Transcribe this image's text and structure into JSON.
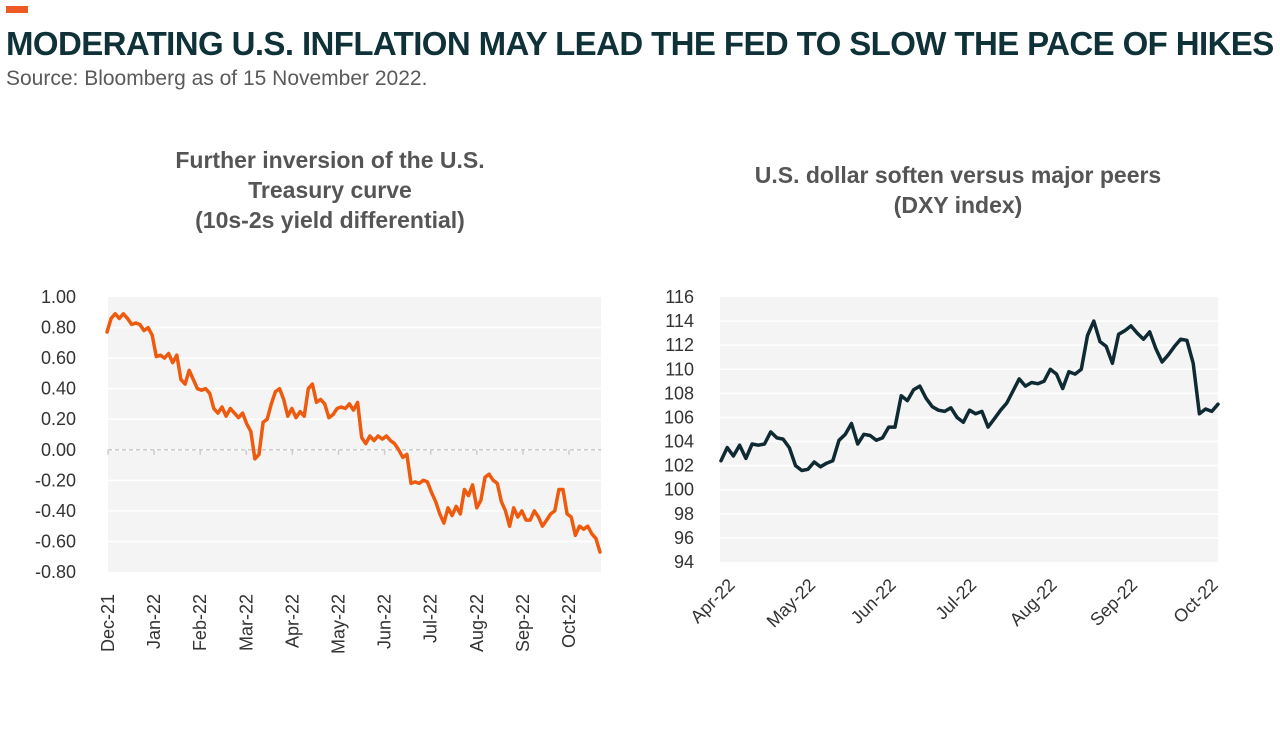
{
  "header": {
    "title": "MODERATING U.S. INFLATION MAY LEAD THE FED TO SLOW THE PACE OF HIKES",
    "source": "Source: Bloomberg as of 15 November 2022.",
    "accent_color": "#ee5a24",
    "title_color": "#0f3138"
  },
  "chart_data": [
    {
      "type": "line",
      "title_lines": [
        "Further inversion of the U.S.",
        "Treasury curve",
        "(10s-2s yield differential)"
      ],
      "xlabel": "",
      "ylabel": "",
      "ylim": [
        -0.8,
        1.0
      ],
      "yticks": [
        "1.00",
        "0.80",
        "0.60",
        "0.40",
        "0.20",
        "0.00",
        "-0.20",
        "-0.40",
        "-0.60",
        "-0.80"
      ],
      "xticks": [
        "Dec-21",
        "Jan-22",
        "Feb-22",
        "Mar-22",
        "Apr-22",
        "May-22",
        "Jun-22",
        "Jul-22",
        "Aug-22",
        "Sep-22",
        "Oct-22"
      ],
      "grid": true,
      "line_color": "#ee5a0e",
      "series": [
        {
          "values": [
            0.77,
            0.86,
            0.89,
            0.86,
            0.89,
            0.86,
            0.82,
            0.83,
            0.82,
            0.78,
            0.8,
            0.75,
            0.61,
            0.62,
            0.6,
            0.63,
            0.57,
            0.62,
            0.46,
            0.43,
            0.52,
            0.46,
            0.4,
            0.39,
            0.4,
            0.37,
            0.27,
            0.24,
            0.28,
            0.22,
            0.27,
            0.24,
            0.21,
            0.24,
            0.17,
            0.12,
            -0.06,
            -0.03,
            0.18,
            0.2,
            0.3,
            0.38,
            0.4,
            0.33,
            0.22,
            0.27,
            0.21,
            0.25,
            0.22,
            0.4,
            0.43,
            0.31,
            0.33,
            0.3,
            0.21,
            0.23,
            0.27,
            0.28,
            0.27,
            0.3,
            0.26,
            0.31,
            0.08,
            0.04,
            0.09,
            0.06,
            0.09,
            0.07,
            0.09,
            0.06,
            0.04,
            0.0,
            -0.05,
            -0.03,
            -0.22,
            -0.21,
            -0.22,
            -0.2,
            -0.21,
            -0.28,
            -0.34,
            -0.42,
            -0.48,
            -0.38,
            -0.43,
            -0.37,
            -0.42,
            -0.26,
            -0.3,
            -0.23,
            -0.38,
            -0.33,
            -0.18,
            -0.16,
            -0.2,
            -0.22,
            -0.34,
            -0.4,
            -0.5,
            -0.38,
            -0.44,
            -0.4,
            -0.46,
            -0.46,
            -0.4,
            -0.44,
            -0.5,
            -0.46,
            -0.42,
            -0.4,
            -0.26,
            -0.26,
            -0.42,
            -0.44,
            -0.56,
            -0.5,
            -0.52,
            -0.5,
            -0.55,
            -0.58,
            -0.67
          ]
        }
      ]
    },
    {
      "type": "line",
      "title_lines": [
        "U.S. dollar soften versus major peers",
        "(DXY index)"
      ],
      "xlabel": "",
      "ylabel": "",
      "ylim": [
        94,
        116
      ],
      "yticks": [
        "116",
        "114",
        "112",
        "110",
        "108",
        "106",
        "104",
        "102",
        "100",
        "98",
        "96",
        "94"
      ],
      "xticks": [
        "Apr-22",
        "May-22",
        "Jun-22",
        "Jul-22",
        "Aug-22",
        "Sep-22",
        "Oct-22"
      ],
      "grid": true,
      "line_color": "#0f2a33",
      "series": [
        {
          "values": [
            102.4,
            103.5,
            102.8,
            103.7,
            102.6,
            103.8,
            103.7,
            103.8,
            104.8,
            104.3,
            104.2,
            103.5,
            102.0,
            101.6,
            101.7,
            102.3,
            101.9,
            102.2,
            102.4,
            104.1,
            104.6,
            105.5,
            103.8,
            104.6,
            104.5,
            104.1,
            104.3,
            105.2,
            105.2,
            107.8,
            107.4,
            108.3,
            108.6,
            107.6,
            106.9,
            106.6,
            106.5,
            106.8,
            106.0,
            105.6,
            106.6,
            106.3,
            106.5,
            105.2,
            105.9,
            106.6,
            107.2,
            108.2,
            109.2,
            108.6,
            108.9,
            108.8,
            109.0,
            110.0,
            109.6,
            108.4,
            109.8,
            109.6,
            110.0,
            112.8,
            114.0,
            112.3,
            111.9,
            110.5,
            112.9,
            113.2,
            113.6,
            113.0,
            112.5,
            113.1,
            111.7,
            110.6,
            111.2,
            111.9,
            112.5,
            112.4,
            110.5,
            106.3,
            106.7,
            106.5,
            107.1
          ]
        }
      ]
    }
  ]
}
